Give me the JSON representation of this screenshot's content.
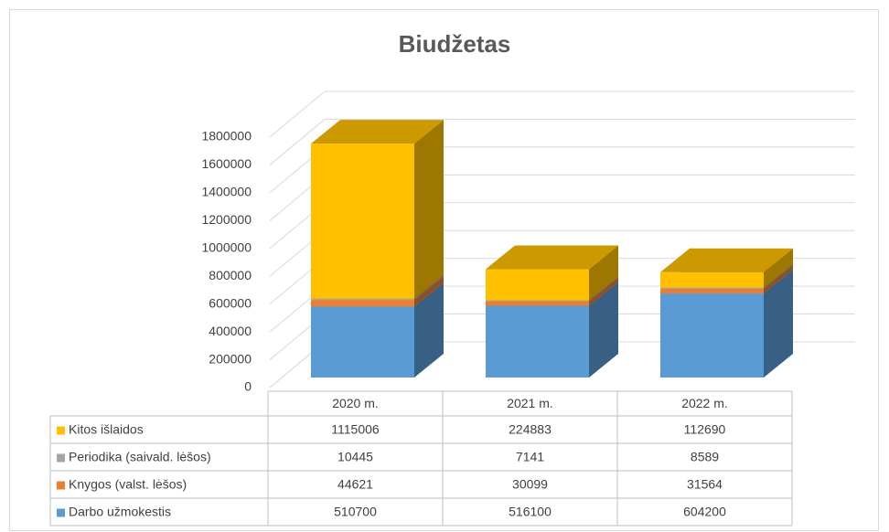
{
  "chart_data": {
    "type": "bar",
    "stacked": true,
    "three_d": true,
    "data_table": true,
    "title": "Biudžetas",
    "categories": [
      "2020 m.",
      "2021 m.",
      "2022 m."
    ],
    "series": [
      {
        "name": "Darbo užmokestis",
        "color": "#5b9bd5",
        "values": [
          510700,
          516100,
          604200
        ]
      },
      {
        "name": "Knygos (valst. lėšos)",
        "color": "#ed7d31",
        "values": [
          44621,
          30099,
          31564
        ]
      },
      {
        "name": "Periodika (saivald. lėšos)",
        "color": "#a5a5a5",
        "values": [
          10445,
          7141,
          8589
        ]
      },
      {
        "name": "Kitos išlaidos",
        "color": "#ffc000",
        "values": [
          1115006,
          224883,
          112690
        ]
      }
    ],
    "ylim": [
      0,
      1800000
    ],
    "yticks": [
      0,
      200000,
      400000,
      600000,
      800000,
      1000000,
      1200000,
      1400000,
      1600000,
      1800000
    ],
    "grid": true
  }
}
